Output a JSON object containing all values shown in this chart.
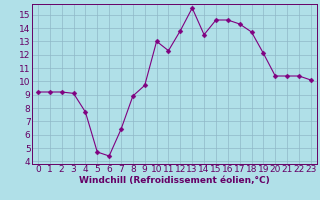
{
  "x": [
    0,
    1,
    2,
    3,
    4,
    5,
    6,
    7,
    8,
    9,
    10,
    11,
    12,
    13,
    14,
    15,
    16,
    17,
    18,
    19,
    20,
    21,
    22,
    23
  ],
  "y": [
    9.2,
    9.2,
    9.2,
    9.1,
    7.7,
    4.7,
    4.4,
    6.4,
    8.9,
    9.7,
    13.0,
    12.3,
    13.8,
    15.5,
    13.5,
    14.6,
    14.6,
    14.3,
    13.7,
    12.1,
    10.4,
    10.4,
    10.4,
    10.1
  ],
  "line_color": "#800080",
  "marker_color": "#800080",
  "bg_color": "#b0e0e8",
  "grid_color": "#90b8c8",
  "xlabel": "Windchill (Refroidissement éolien,°C)",
  "xlim": [
    -0.5,
    23.5
  ],
  "ylim": [
    3.8,
    15.8
  ],
  "yticks": [
    4,
    5,
    6,
    7,
    8,
    9,
    10,
    11,
    12,
    13,
    14,
    15
  ],
  "xticks": [
    0,
    1,
    2,
    3,
    4,
    5,
    6,
    7,
    8,
    9,
    10,
    11,
    12,
    13,
    14,
    15,
    16,
    17,
    18,
    19,
    20,
    21,
    22,
    23
  ],
  "xlabel_fontsize": 6.5,
  "tick_fontsize": 6.5,
  "line_width": 0.8,
  "marker_size": 2.5,
  "text_color": "#660066",
  "spine_color": "#660066"
}
